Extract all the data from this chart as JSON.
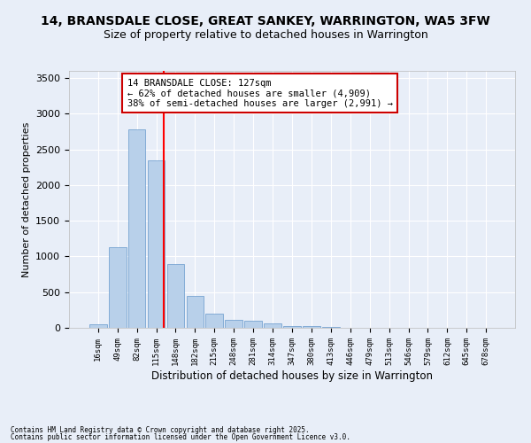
{
  "title1": "14, BRANSDALE CLOSE, GREAT SANKEY, WARRINGTON, WA5 3FW",
  "title2": "Size of property relative to detached houses in Warrington",
  "xlabel": "Distribution of detached houses by size in Warrington",
  "ylabel": "Number of detached properties",
  "categories": [
    "16sqm",
    "49sqm",
    "82sqm",
    "115sqm",
    "148sqm",
    "182sqm",
    "215sqm",
    "248sqm",
    "281sqm",
    "314sqm",
    "347sqm",
    "380sqm",
    "413sqm",
    "446sqm",
    "479sqm",
    "513sqm",
    "546sqm",
    "579sqm",
    "612sqm",
    "645sqm",
    "678sqm"
  ],
  "values": [
    50,
    1130,
    2780,
    2350,
    900,
    450,
    200,
    110,
    100,
    60,
    30,
    20,
    10,
    5,
    3,
    2,
    1,
    1,
    0,
    0,
    0
  ],
  "bar_color": "#b8d0ea",
  "bar_edgecolor": "#6699cc",
  "annotation_title": "14 BRANSDALE CLOSE: 127sqm",
  "annotation_line1": "← 62% of detached houses are smaller (4,909)",
  "annotation_line2": "38% of semi-detached houses are larger (2,991) →",
  "ylim": [
    0,
    3600
  ],
  "yticks": [
    0,
    500,
    1000,
    1500,
    2000,
    2500,
    3000,
    3500
  ],
  "footnote1": "Contains HM Land Registry data © Crown copyright and database right 2025.",
  "footnote2": "Contains public sector information licensed under the Open Government Licence v3.0.",
  "background_color": "#e8eef8",
  "grid_color": "#ffffff",
  "title1_fontsize": 10,
  "title2_fontsize": 9,
  "annotation_box_color": "#ffffff",
  "annotation_box_edgecolor": "#cc0000"
}
